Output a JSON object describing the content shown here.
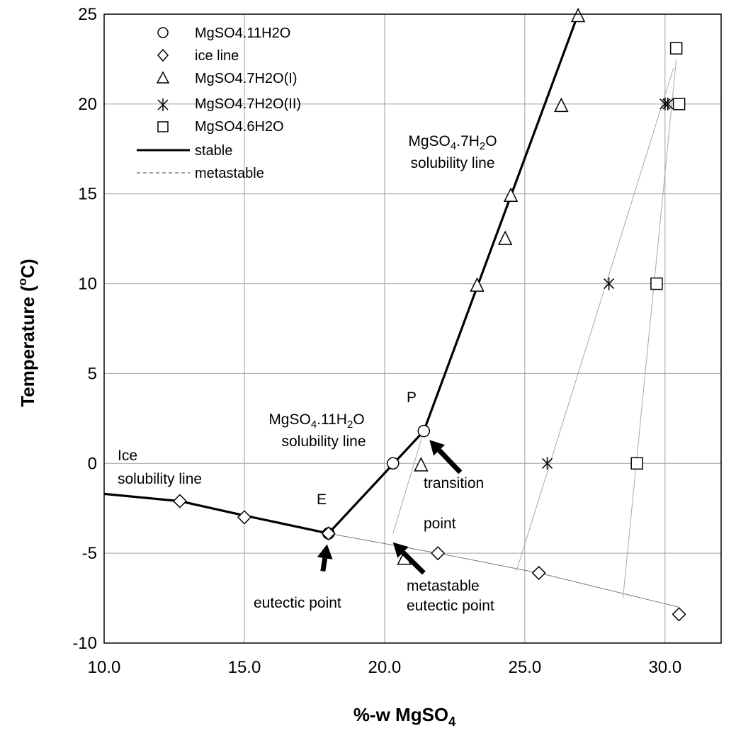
{
  "chart_data": {
    "type": "scatter",
    "xlabel_main": "%-w MgSO",
    "xlabel_sub": "4",
    "ylabel_main": "Temperature (",
    "ylabel_sup": "o",
    "ylabel_end": "C)",
    "xlim": [
      10.0,
      32.0
    ],
    "ylim": [
      -10,
      25
    ],
    "x_ticks": [
      "10.0",
      "15.0",
      "20.0",
      "25.0",
      "30.0"
    ],
    "x_tick_values": [
      10,
      15,
      20,
      25,
      30
    ],
    "y_ticks": [
      "25",
      "20",
      "15",
      "10",
      "5",
      "0",
      "-5",
      "-10"
    ],
    "y_tick_values": [
      25,
      20,
      15,
      10,
      5,
      0,
      -5,
      -10
    ],
    "grid": true,
    "legend_position": "top-left",
    "series": [
      {
        "name": "MgSO4.11H2O",
        "marker": "circle",
        "points": [
          [
            18.0,
            -3.9
          ],
          [
            20.3,
            0.0
          ],
          [
            21.4,
            1.8
          ]
        ]
      },
      {
        "name": "ice line",
        "marker": "diamond",
        "points": [
          [
            12.7,
            -2.1
          ],
          [
            15.0,
            -3.0
          ],
          [
            18.0,
            -3.9
          ],
          [
            21.9,
            -5.0
          ],
          [
            25.5,
            -6.1
          ],
          [
            30.5,
            -8.4
          ]
        ]
      },
      {
        "name": "MgSO4.7H2O(I)",
        "marker": "triangle",
        "points": [
          [
            20.7,
            -5.3
          ],
          [
            21.3,
            -0.1
          ],
          [
            23.3,
            9.9
          ],
          [
            24.3,
            12.5
          ],
          [
            24.5,
            14.9
          ],
          [
            26.3,
            19.9
          ],
          [
            26.9,
            24.9
          ]
        ]
      },
      {
        "name": "MgSO4.7H2O(II)",
        "marker": "star",
        "points": [
          [
            25.8,
            0.0
          ],
          [
            28.0,
            10.0
          ],
          [
            30.0,
            20.0
          ],
          [
            30.1,
            20.0
          ],
          [
            30.4,
            23.1
          ]
        ]
      },
      {
        "name": "MgSO4.6H2O",
        "marker": "square",
        "points": [
          [
            29.0,
            0.0
          ],
          [
            29.7,
            10.0
          ],
          [
            30.5,
            20.0
          ],
          [
            30.4,
            23.1
          ]
        ]
      }
    ],
    "lines": [
      {
        "name": "stable",
        "style": "stable",
        "points": [
          [
            10.0,
            -1.7
          ],
          [
            12.7,
            -2.1
          ],
          [
            15.0,
            -2.9
          ],
          [
            18.0,
            -3.9
          ],
          [
            21.4,
            1.8
          ],
          [
            26.9,
            25.0
          ]
        ]
      },
      {
        "name": "metastable",
        "style": "metastable",
        "points": [
          [
            18.0,
            -3.9
          ],
          [
            21.9,
            -5.0
          ],
          [
            25.5,
            -6.1
          ],
          [
            30.5,
            -8.0
          ]
        ]
      },
      {
        "name": "",
        "style": "thin",
        "points": [
          [
            20.3,
            -3.9
          ],
          [
            21.4,
            1.8
          ]
        ]
      },
      {
        "name": "",
        "style": "thin",
        "points": [
          [
            24.7,
            -6.0
          ],
          [
            30.3,
            22.0
          ]
        ]
      },
      {
        "name": "",
        "style": "thin",
        "points": [
          [
            28.5,
            -7.5
          ],
          [
            30.4,
            22.5
          ]
        ]
      }
    ],
    "annotations": {
      "mg7_line1": "MgSO",
      "mg7_sub1": "4",
      "mg7_mid": ".7H",
      "mg7_sub2": "2",
      "mg7_end": "O",
      "mg7_line2": "solubility line",
      "mg11_line1": "MgSO",
      "mg11_sub1": "4",
      "mg11_mid": ".11H",
      "mg11_sub2": "2",
      "mg11_end": "O",
      "mg11_line2": "solubility line",
      "ice1": "Ice",
      "ice2": "solubility line",
      "P": "P",
      "E": "E",
      "transition": "transition",
      "point": "point",
      "eutectic": "eutectic point",
      "meta1": "metastable",
      "meta2": "eutectic point"
    },
    "arrows": [
      {
        "name": "transition-arrow",
        "from": [
          22.7,
          -0.5
        ],
        "to": [
          21.6,
          1.3
        ]
      },
      {
        "name": "metastable-eutectic-arrow",
        "from": [
          21.4,
          -6.1
        ],
        "to": [
          20.3,
          -4.4
        ]
      },
      {
        "name": "eutectic-arrow",
        "from": [
          17.8,
          -6.0
        ],
        "to": [
          17.95,
          -4.5
        ]
      }
    ]
  },
  "colors": {
    "line": "#000000",
    "grid": "#a0a0a0",
    "thin": "#a8a8a8"
  }
}
